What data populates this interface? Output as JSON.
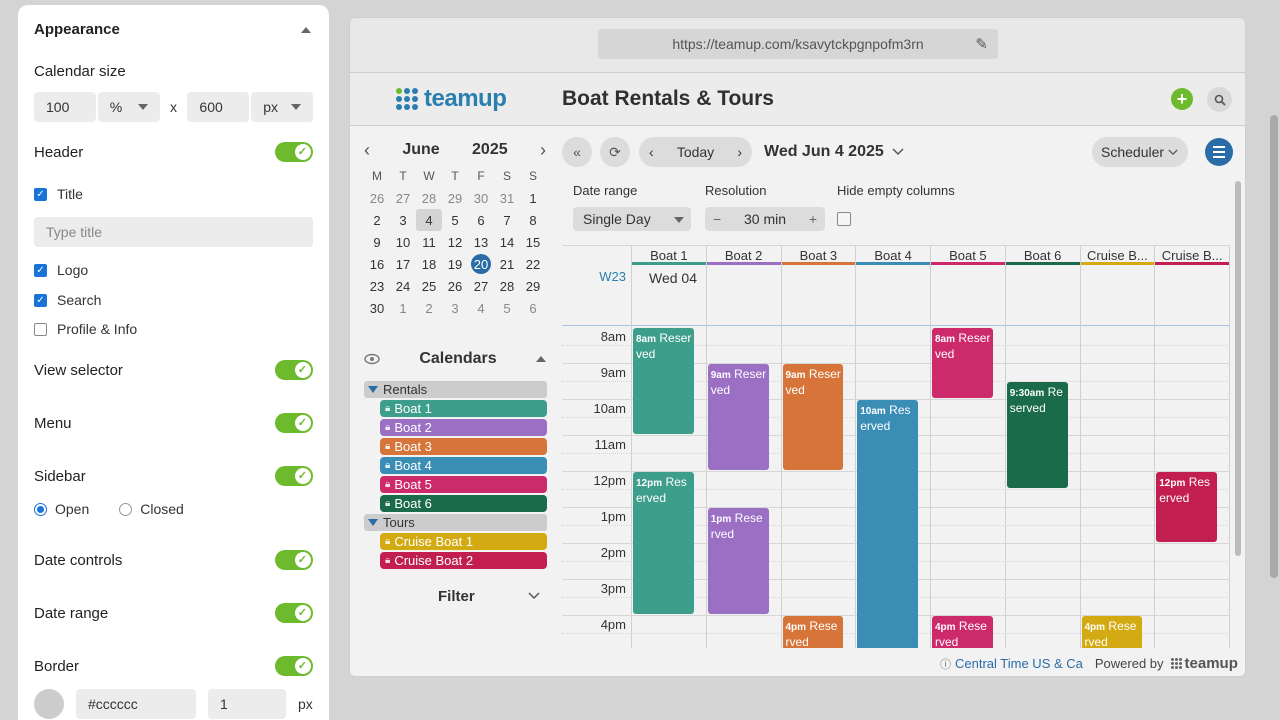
{
  "panel": {
    "appearance": "Appearance",
    "calendar_size_label": "Calendar size",
    "width_value": "100",
    "width_unit": "%",
    "size_x": "x",
    "height_value": "600",
    "height_unit": "px",
    "header_label": "Header",
    "title_label": "Title",
    "title_placeholder": "Type title",
    "logo_label": "Logo",
    "search_label": "Search",
    "profile_label": "Profile & Info",
    "view_selector_label": "View selector",
    "menu_label": "Menu",
    "sidebar_label": "Sidebar",
    "open_label": "Open",
    "closed_label": "Closed",
    "date_controls_label": "Date controls",
    "date_range_label": "Date range",
    "border_label": "Border",
    "border_color": "#cccccc",
    "border_width": "1",
    "border_unit": "px"
  },
  "url": "https://teamup.com/ksavytckpgnpofm3rn",
  "app": {
    "logo_text": "teamup",
    "title": "Boat Rentals & Tours"
  },
  "mini_calendar": {
    "month": "June",
    "year": "2025",
    "dow": [
      "M",
      "T",
      "W",
      "T",
      "F",
      "S",
      "S"
    ],
    "days": [
      "26",
      "27",
      "28",
      "29",
      "30",
      "31",
      "1",
      "2",
      "3",
      "4",
      "5",
      "6",
      "7",
      "8",
      "9",
      "10",
      "11",
      "12",
      "13",
      "14",
      "15",
      "16",
      "17",
      "18",
      "19",
      "20",
      "21",
      "22",
      "23",
      "24",
      "25",
      "26",
      "27",
      "28",
      "29",
      "30",
      "1",
      "2",
      "3",
      "4",
      "5",
      "6"
    ]
  },
  "sidebar": {
    "calendars_label": "Calendars",
    "groups": [
      {
        "name": "Rentals",
        "items": [
          {
            "name": "Boat 1",
            "color": "#3e9e8c"
          },
          {
            "name": "Boat 2",
            "color": "#9b6fc4"
          },
          {
            "name": "Boat 3",
            "color": "#d6743a"
          },
          {
            "name": "Boat 4",
            "color": "#3a8eb6"
          },
          {
            "name": "Boat 5",
            "color": "#cc2a6a"
          },
          {
            "name": "Boat 6",
            "color": "#1a6b4a"
          }
        ]
      },
      {
        "name": "Tours",
        "items": [
          {
            "name": "Cruise Boat 1",
            "color": "#d4aa12"
          },
          {
            "name": "Cruise Boat 2",
            "color": "#c21e4f"
          }
        ]
      }
    ],
    "filter_label": "Filter"
  },
  "nav": {
    "today": "Today",
    "date": "Wed Jun 4 2025",
    "view": "Scheduler"
  },
  "options": {
    "date_range_label": "Date range",
    "date_range_value": "Single Day",
    "resolution_label": "Resolution",
    "resolution_value": "30 min",
    "hide_empty_label": "Hide empty columns"
  },
  "scheduler": {
    "week": "W23",
    "day": "Wed 04",
    "columns": [
      {
        "name": "Boat 1",
        "color": "#3e9e8c"
      },
      {
        "name": "Boat 2",
        "color": "#9b6fc4"
      },
      {
        "name": "Boat 3",
        "color": "#d6743a"
      },
      {
        "name": "Boat 4",
        "color": "#3a8eb6"
      },
      {
        "name": "Boat 5",
        "color": "#cc2a6a"
      },
      {
        "name": "Boat 6",
        "color": "#1a6b4a"
      },
      {
        "name": "Cruise B...",
        "color": "#d4aa12"
      },
      {
        "name": "Cruise B...",
        "color": "#c21e4f"
      }
    ],
    "hours": [
      "8am",
      "9am",
      "10am",
      "11am",
      "12pm",
      "1pm",
      "2pm",
      "3pm",
      "4pm"
    ],
    "events": [
      {
        "col": 0,
        "start": 8,
        "end": 11,
        "time": "8am",
        "text": "Reserved"
      },
      {
        "col": 0,
        "start": 12,
        "end": 16,
        "time": "12pm",
        "text": "Reserved"
      },
      {
        "col": 1,
        "start": 9,
        "end": 12,
        "time": "9am",
        "text": "Reserved"
      },
      {
        "col": 1,
        "start": 13,
        "end": 16,
        "time": "1pm",
        "text": "Reserved"
      },
      {
        "col": 2,
        "start": 9,
        "end": 12,
        "time": "9am",
        "text": "Reserved"
      },
      {
        "col": 2,
        "start": 16,
        "end": 17,
        "time": "4pm",
        "text": "Reserved"
      },
      {
        "col": 3,
        "start": 10,
        "end": 17,
        "time": "10am",
        "text": "Reserved"
      },
      {
        "col": 4,
        "start": 8,
        "end": 10,
        "time": "8am",
        "text": "Reserved"
      },
      {
        "col": 4,
        "start": 16,
        "end": 17,
        "time": "4pm",
        "text": "Reserved"
      },
      {
        "col": 5,
        "start": 9.5,
        "end": 12.5,
        "time": "9:30am",
        "text": "Reserved"
      },
      {
        "col": 6,
        "start": 16,
        "end": 17,
        "time": "4pm",
        "text": "Reserved"
      },
      {
        "col": 7,
        "start": 12,
        "end": 14,
        "time": "12pm",
        "text": "Reserved"
      }
    ]
  },
  "footer": {
    "timezone": "Central Time US & Ca",
    "powered": "Powered by",
    "brand": "teamup"
  }
}
